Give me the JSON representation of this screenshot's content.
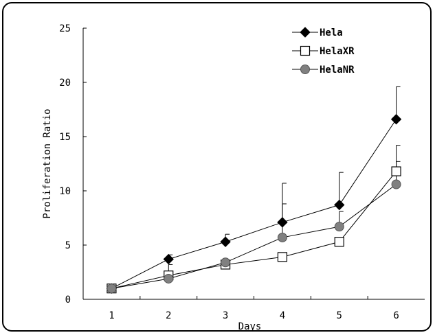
{
  "chart_data": {
    "type": "line",
    "title": "",
    "xlabel": "Days",
    "ylabel": "Proliferation Ratio",
    "x": [
      1,
      2,
      3,
      4,
      5,
      6
    ],
    "xticks": [
      "1",
      "2",
      "3",
      "4",
      "5",
      "6"
    ],
    "yticks": [
      "0",
      "5",
      "10",
      "15",
      "20",
      "25"
    ],
    "xlim": [
      0.5,
      6.5
    ],
    "ylim": [
      0,
      25
    ],
    "grid": false,
    "legend_position": "top-right",
    "series": [
      {
        "name": "Hela",
        "marker": "diamond",
        "color": "#000000",
        "values": [
          1.0,
          3.7,
          5.3,
          7.1,
          8.7,
          16.6
        ],
        "error": [
          0.0,
          0.4,
          0.7,
          1.7,
          3.0,
          3.0
        ]
      },
      {
        "name": "HelaXR",
        "marker": "square",
        "color": "#ffffff",
        "values": [
          1.0,
          2.2,
          3.2,
          3.9,
          5.3,
          11.8
        ],
        "error": [
          0.0,
          0.0,
          0.0,
          0.0,
          0.0,
          2.4
        ]
      },
      {
        "name": "HelaNR",
        "marker": "circle",
        "color": "#808080",
        "values": [
          1.0,
          1.9,
          3.4,
          5.7,
          6.7,
          10.6
        ],
        "error": [
          0.0,
          1.3,
          0.0,
          5.0,
          1.4,
          2.1
        ]
      }
    ]
  }
}
